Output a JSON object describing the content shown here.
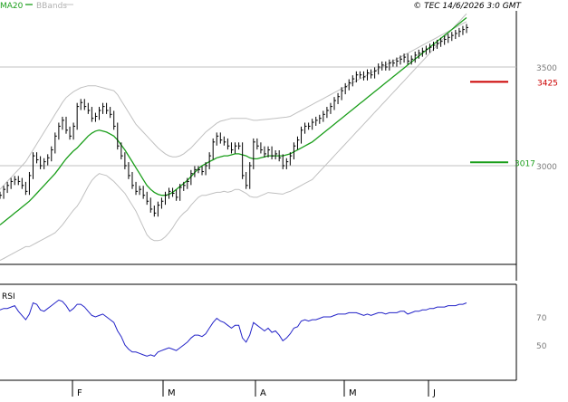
{
  "header": {
    "legend_ma": "MA20",
    "legend_bb": "BBands",
    "copyright": "© TEC 14/6/2026 3:0 GMT"
  },
  "colors": {
    "ma": "#1a9e1a",
    "bbands": "#c0c0c0",
    "rsi": "#2323c8",
    "resistance": "#cc0000",
    "support": "#1a9e1a",
    "price": "#000000",
    "grid": "#c0c0c0",
    "axis_text": "#7a7a7a"
  },
  "chart_data": [
    {
      "type": "ohlc",
      "panel": "price",
      "x_ticks": [
        "F",
        "M",
        "A",
        "M",
        "J"
      ],
      "y_ticks": [
        "3500",
        "3000"
      ],
      "ylim": [
        2500,
        3600
      ],
      "grid": true,
      "levels": [
        {
          "label": "3425",
          "value": 3425,
          "color": "resistance"
        },
        {
          "label": "3017",
          "value": 3017,
          "color": "support"
        }
      ],
      "x": [
        0,
        2,
        4,
        6,
        8,
        10,
        12,
        14,
        16,
        18,
        20,
        22,
        24,
        26,
        28,
        30,
        32,
        34,
        36,
        38,
        40,
        42,
        44,
        46,
        48,
        50,
        52,
        54,
        56,
        58,
        60,
        62,
        64,
        66,
        68,
        70,
        72,
        74,
        76,
        78,
        80,
        82,
        84,
        86,
        88,
        90,
        92,
        94,
        96,
        98,
        100,
        102,
        104,
        106,
        108,
        110,
        112,
        114,
        116,
        118,
        120,
        122,
        124,
        126,
        128,
        130,
        132,
        134,
        136,
        138,
        140,
        142,
        144,
        146,
        148,
        150,
        152,
        154,
        156,
        158,
        160,
        162,
        164,
        166,
        168,
        170,
        172,
        174,
        176,
        178,
        180,
        182,
        184,
        186,
        188,
        190,
        192,
        194,
        196,
        198,
        200,
        202,
        204,
        206,
        208,
        210,
        212,
        214,
        216,
        218,
        220,
        222,
        224,
        226,
        228,
        230,
        232,
        234,
        236,
        238,
        240,
        242,
        244,
        246,
        248,
        250,
        252,
        254
      ],
      "close": [
        2850,
        2880,
        2900,
        2920,
        2930,
        2920,
        2900,
        2870,
        2950,
        3050,
        3030,
        3000,
        3020,
        3040,
        3080,
        3150,
        3200,
        3230,
        3180,
        3150,
        3200,
        3300,
        3320,
        3300,
        3280,
        3240,
        3250,
        3280,
        3300,
        3280,
        3260,
        3200,
        3100,
        3050,
        3000,
        2950,
        2900,
        2870,
        2880,
        2850,
        2820,
        2780,
        2760,
        2800,
        2820,
        2850,
        2870,
        2860,
        2840,
        2890,
        2900,
        2920,
        2960,
        2980,
        2980,
        2970,
        3000,
        3050,
        3120,
        3150,
        3130,
        3120,
        3100,
        3080,
        3100,
        3100,
        2950,
        2900,
        3000,
        3120,
        3100,
        3080,
        3060,
        3080,
        3050,
        3060,
        3040,
        3000,
        3020,
        3050,
        3100,
        3130,
        3180,
        3200,
        3200,
        3220,
        3230,
        3240,
        3260,
        3280,
        3300,
        3330,
        3350,
        3380,
        3400,
        3420,
        3440,
        3460,
        3460,
        3450,
        3470,
        3460,
        3480,
        3500,
        3510,
        3500,
        3520,
        3520,
        3530,
        3540,
        3550,
        3530,
        3540,
        3560,
        3570,
        3580,
        3590,
        3600,
        3610,
        3620,
        3630,
        3640,
        3650,
        3660,
        3670,
        3680,
        3690,
        3700
      ],
      "ma20": [
        2700,
        2715,
        2730,
        2745,
        2760,
        2775,
        2790,
        2805,
        2820,
        2840,
        2860,
        2880,
        2900,
        2920,
        2940,
        2960,
        2985,
        3010,
        3035,
        3055,
        3075,
        3090,
        3110,
        3130,
        3150,
        3165,
        3175,
        3180,
        3175,
        3170,
        3160,
        3150,
        3130,
        3105,
        3080,
        3050,
        3020,
        2990,
        2960,
        2930,
        2900,
        2880,
        2865,
        2855,
        2850,
        2850,
        2855,
        2865,
        2880,
        2895,
        2910,
        2925,
        2945,
        2965,
        2985,
        3000,
        3010,
        3020,
        3030,
        3040,
        3045,
        3050,
        3050,
        3055,
        3060,
        3060,
        3055,
        3050,
        3040,
        3035,
        3035,
        3040,
        3045,
        3050,
        3050,
        3050,
        3050,
        3050,
        3055,
        3060,
        3070,
        3080,
        3090,
        3100,
        3110,
        3120,
        3135,
        3150,
        3165,
        3180,
        3195,
        3210,
        3225,
        3240,
        3255,
        3270,
        3285,
        3300,
        3315,
        3330,
        3345,
        3360,
        3375,
        3390,
        3405,
        3420,
        3435,
        3450,
        3465,
        3480,
        3495,
        3510,
        3525,
        3540,
        3555,
        3570,
        3585,
        3600,
        3615,
        3630,
        3645,
        3660,
        3675,
        3690,
        3705,
        3720,
        3735,
        3750
      ],
      "bb_upper": [
        2880,
        2900,
        2920,
        2940,
        2960,
        2980,
        3000,
        3020,
        3050,
        3080,
        3110,
        3140,
        3170,
        3200,
        3230,
        3260,
        3290,
        3320,
        3345,
        3360,
        3375,
        3385,
        3395,
        3400,
        3405,
        3405,
        3405,
        3400,
        3395,
        3390,
        3385,
        3380,
        3360,
        3330,
        3300,
        3270,
        3240,
        3210,
        3190,
        3170,
        3150,
        3130,
        3110,
        3090,
        3075,
        3060,
        3050,
        3045,
        3045,
        3050,
        3060,
        3075,
        3090,
        3110,
        3130,
        3150,
        3170,
        3185,
        3200,
        3215,
        3225,
        3230,
        3235,
        3240,
        3240,
        3240,
        3240,
        3240,
        3235,
        3230,
        3230,
        3232,
        3234,
        3236,
        3238,
        3240,
        3242,
        3244,
        3246,
        3250,
        3260,
        3270,
        3280,
        3290,
        3300,
        3310,
        3320,
        3330,
        3340,
        3350,
        3360,
        3370,
        3380,
        3390,
        3400,
        3410,
        3420,
        3430,
        3440,
        3450,
        3460,
        3470,
        3480,
        3490,
        3500,
        3510,
        3520,
        3530,
        3540,
        3550,
        3560,
        3570,
        3580,
        3590,
        3600,
        3610,
        3620,
        3630,
        3640,
        3650,
        3660,
        3670,
        3680,
        3690,
        3700,
        3710,
        3720,
        3730
      ],
      "bb_lower": [
        2520,
        2530,
        2540,
        2550,
        2560,
        2570,
        2580,
        2590,
        2590,
        2600,
        2610,
        2620,
        2630,
        2640,
        2650,
        2660,
        2680,
        2700,
        2725,
        2750,
        2775,
        2795,
        2825,
        2860,
        2895,
        2925,
        2945,
        2960,
        2955,
        2950,
        2935,
        2920,
        2900,
        2880,
        2860,
        2830,
        2800,
        2770,
        2730,
        2690,
        2650,
        2630,
        2620,
        2620,
        2625,
        2640,
        2660,
        2685,
        2715,
        2740,
        2760,
        2775,
        2800,
        2820,
        2840,
        2850,
        2850,
        2855,
        2860,
        2865,
        2865,
        2870,
        2865,
        2870,
        2880,
        2880,
        2870,
        2860,
        2845,
        2840,
        2840,
        2848,
        2856,
        2864,
        2862,
        2860,
        2858,
        2856,
        2864,
        2870,
        2880,
        2890,
        2900,
        2910,
        2920,
        2930,
        2950,
        2970,
        2990,
        3010,
        3030,
        3050,
        3070,
        3090,
        3110,
        3130,
        3150,
        3170,
        3190,
        3210,
        3230,
        3250,
        3270,
        3290,
        3310,
        3330,
        3350,
        3370,
        3390,
        3410,
        3430,
        3450,
        3470,
        3490,
        3510,
        3530,
        3550,
        3570,
        3590,
        3610,
        3630,
        3650,
        3670,
        3690,
        3710,
        3730,
        3750,
        3770
      ]
    },
    {
      "type": "line",
      "panel": "indicator",
      "title": "RSI",
      "y_ticks": [
        "70",
        "50"
      ],
      "ylim": [
        35,
        85
      ],
      "grid": false,
      "x": [
        0,
        2,
        4,
        6,
        8,
        10,
        12,
        14,
        16,
        18,
        20,
        22,
        24,
        26,
        28,
        30,
        32,
        34,
        36,
        38,
        40,
        42,
        44,
        46,
        48,
        50,
        52,
        54,
        56,
        58,
        60,
        62,
        64,
        66,
        68,
        70,
        72,
        74,
        76,
        78,
        80,
        82,
        84,
        86,
        88,
        90,
        92,
        94,
        96,
        98,
        100,
        102,
        104,
        106,
        108,
        110,
        112,
        114,
        116,
        118,
        120,
        122,
        124,
        126,
        128,
        130,
        132,
        134,
        136,
        138,
        140,
        142,
        144,
        146,
        148,
        150,
        152,
        154,
        156,
        158,
        160,
        162,
        164,
        166,
        168,
        170,
        172,
        174,
        176,
        178,
        180,
        182,
        184,
        186,
        188,
        190,
        192,
        194,
        196,
        198,
        200,
        202,
        204,
        206,
        208,
        210,
        212,
        214,
        216,
        218,
        220,
        222,
        224,
        226,
        228,
        230,
        232,
        234,
        236,
        238,
        240,
        242,
        244,
        246,
        248,
        250,
        252,
        254
      ],
      "values": [
        75,
        76,
        76,
        77,
        78,
        74,
        71,
        68,
        72,
        80,
        79,
        75,
        74,
        76,
        78,
        80,
        82,
        81,
        78,
        74,
        76,
        79,
        79,
        77,
        74,
        71,
        70,
        71,
        72,
        70,
        68,
        66,
        60,
        56,
        50,
        47,
        45,
        45,
        44,
        43,
        42,
        43,
        42,
        45,
        46,
        47,
        48,
        47,
        46,
        48,
        50,
        52,
        55,
        57,
        57,
        56,
        58,
        62,
        66,
        69,
        67,
        66,
        64,
        62,
        64,
        64,
        55,
        52,
        57,
        66,
        64,
        62,
        60,
        62,
        59,
        60,
        57,
        53,
        55,
        58,
        62,
        63,
        67,
        68,
        67,
        68,
        68,
        69,
        70,
        70,
        70,
        71,
        72,
        72,
        72,
        73,
        73,
        73,
        72,
        71,
        72,
        71,
        72,
        73,
        73,
        72,
        73,
        73,
        73,
        74,
        74,
        72,
        73,
        74,
        74,
        75,
        75,
        76,
        76,
        77,
        77,
        77,
        78,
        78,
        78,
        79,
        79,
        80
      ]
    }
  ]
}
